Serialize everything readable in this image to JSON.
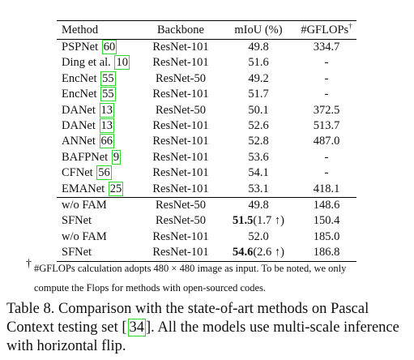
{
  "table": {
    "headers": {
      "method": "Method",
      "backbone": "Backbone",
      "miou": "mIoU (%)",
      "gflops": "#GFLOPs",
      "gflops_mark": "†"
    },
    "rows": [
      {
        "method": "PSPNet",
        "ref": "60",
        "backbone": "ResNet-101",
        "miou": "49.8",
        "gflops": "334.7"
      },
      {
        "method": "Ding et al.",
        "ref": "10",
        "backbone": "ResNet-101",
        "miou": "51.6",
        "gflops": "-"
      },
      {
        "method": "EncNet",
        "ref": "55",
        "backbone": "ResNet-50",
        "miou": "49.2",
        "gflops": "-"
      },
      {
        "method": "EncNet",
        "ref": "55",
        "backbone": "ResNet-101",
        "miou": "51.7",
        "gflops": "-"
      },
      {
        "method": "DANet",
        "ref": "13",
        "backbone": "ResNet-50",
        "miou": "50.1",
        "gflops": "372.5"
      },
      {
        "method": "DANet",
        "ref": "13",
        "backbone": "ResNet-101",
        "miou": "52.6",
        "gflops": "513.7"
      },
      {
        "method": "ANNet",
        "ref": "66",
        "backbone": "ResNet-101",
        "miou": "52.8",
        "gflops": "487.0"
      },
      {
        "method": "BAFPNet",
        "ref": "9",
        "backbone": "ResNet-101",
        "miou": "53.6",
        "gflops": "-"
      },
      {
        "method": "CFNet",
        "ref": "56",
        "backbone": "ResNet-101",
        "miou": "54.1",
        "gflops": "-"
      },
      {
        "method": "EMANet",
        "ref": "25",
        "backbone": "ResNet-101",
        "miou": "53.1",
        "gflops": "418.1"
      },
      {
        "method": "w/o FAM",
        "ref": "",
        "backbone": "ResNet-50",
        "miou": "49.8",
        "gflops": "148.6"
      },
      {
        "method": "SFNet",
        "ref": "",
        "backbone": "ResNet-50",
        "miou": "51.5",
        "miou_extra": "(1.7 ↑)",
        "gflops": "150.4"
      },
      {
        "method": "w/o FAM",
        "ref": "",
        "backbone": "ResNet-101",
        "miou": "52.0",
        "gflops": "185.0"
      },
      {
        "method": "SFNet",
        "ref": "",
        "backbone": "ResNet-101",
        "miou": "54.6",
        "miou_extra": "(2.6 ↑)",
        "gflops": "186.8"
      }
    ]
  },
  "footnote": {
    "mark": "†",
    "line1": "#GFLOPs calculation adopts 480 × 480 image as input. To be noted, we only",
    "line2": "compute the Flops for methods with open-sourced codes."
  },
  "caption": {
    "before_ref": "Table 8. Comparison with the state-of-art methods on Pascal Context testing set [",
    "ref": "34",
    "after_ref": "]. All the models use multi-scale inference with horizontal flip."
  }
}
